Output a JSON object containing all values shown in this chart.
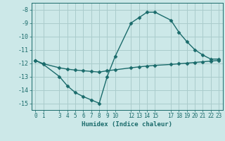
{
  "xlabel": "Humidex (Indice chaleur)",
  "bg_color": "#cce8e8",
  "grid_color": "#aacccc",
  "line_color": "#1a6b6b",
  "ylim": [
    -15.5,
    -7.5
  ],
  "xlim": [
    -0.5,
    23.5
  ],
  "yticks": [
    -8,
    -9,
    -10,
    -11,
    -12,
    -13,
    -14,
    -15
  ],
  "xticks": [
    0,
    1,
    3,
    4,
    5,
    6,
    7,
    8,
    9,
    10,
    12,
    13,
    14,
    15,
    17,
    18,
    19,
    20,
    21,
    22,
    23
  ],
  "curve1_x": [
    0,
    1,
    3,
    4,
    5,
    6,
    7,
    8,
    9,
    10,
    12,
    13,
    14,
    15,
    17,
    18,
    19,
    20,
    21,
    22,
    23
  ],
  "curve1_y": [
    -11.8,
    -12.1,
    -13.0,
    -13.7,
    -14.2,
    -14.5,
    -14.75,
    -15.0,
    -13.0,
    -11.5,
    -9.0,
    -8.6,
    -8.2,
    -8.2,
    -8.8,
    -9.7,
    -10.4,
    -11.0,
    -11.4,
    -11.7,
    -11.7
  ],
  "curve2_x": [
    0,
    1,
    3,
    4,
    5,
    6,
    7,
    8,
    9,
    10,
    12,
    13,
    14,
    15,
    17,
    18,
    19,
    20,
    21,
    22,
    23
  ],
  "curve2_y": [
    -11.8,
    -12.05,
    -12.35,
    -12.45,
    -12.52,
    -12.57,
    -12.62,
    -12.67,
    -12.57,
    -12.5,
    -12.35,
    -12.28,
    -12.22,
    -12.17,
    -12.1,
    -12.05,
    -12.0,
    -11.95,
    -11.9,
    -11.85,
    -11.8
  ],
  "marker": "D",
  "markersize": 2.5,
  "linewidth": 1.0
}
